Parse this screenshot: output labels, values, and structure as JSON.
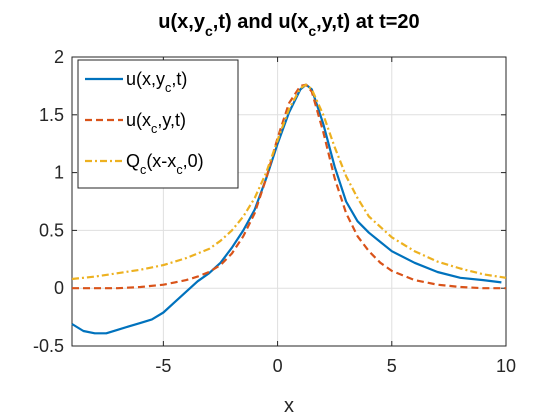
{
  "chart_data": {
    "type": "line",
    "title": "u(x,y_c,t) and u(x_c,y,t) at t=20",
    "title_parts": [
      {
        "t": "u(x,y",
        "sub": false
      },
      {
        "t": "c",
        "sub": true
      },
      {
        "t": ",t) and u(x",
        "sub": false
      },
      {
        "t": "c",
        "sub": true
      },
      {
        "t": ",y,t) at t=20",
        "sub": false
      }
    ],
    "xlabel": "x",
    "ylabel": "",
    "xlim": [
      -9,
      10
    ],
    "ylim": [
      -0.5,
      2
    ],
    "xticks": [
      -5,
      0,
      5,
      10
    ],
    "yticks": [
      -0.5,
      0,
      0.5,
      1,
      1.5,
      2
    ],
    "xtick_labels": [
      "-5",
      "0",
      "5",
      "10"
    ],
    "ytick_labels": [
      "-0.5",
      "0",
      "0.5",
      "1",
      "1.5",
      "2"
    ],
    "grid": true,
    "legend_position": "top-left",
    "series": [
      {
        "name": "u(x,y_c,t)",
        "name_parts": [
          {
            "t": "u(x,y",
            "sub": false
          },
          {
            "t": "c",
            "sub": true
          },
          {
            "t": ",t)",
            "sub": false
          }
        ],
        "color": "#0072BD",
        "style": "solid",
        "x": [
          -9,
          -8.5,
          -8,
          -7.5,
          -7,
          -6.5,
          -6,
          -5.5,
          -5,
          -4.5,
          -4,
          -3.5,
          -3,
          -2.5,
          -2,
          -1.5,
          -1,
          -0.5,
          0,
          0.5,
          1,
          1.25,
          1.5,
          2,
          2.5,
          3,
          3.5,
          4,
          4.5,
          5,
          6,
          7,
          8,
          9,
          9.8
        ],
        "y": [
          -0.31,
          -0.37,
          -0.39,
          -0.39,
          -0.36,
          -0.33,
          -0.3,
          -0.27,
          -0.21,
          -0.12,
          -0.03,
          0.06,
          0.13,
          0.22,
          0.35,
          0.5,
          0.68,
          0.95,
          1.25,
          1.52,
          1.72,
          1.76,
          1.72,
          1.42,
          1.05,
          0.75,
          0.58,
          0.48,
          0.4,
          0.32,
          0.22,
          0.14,
          0.09,
          0.07,
          0.05
        ]
      },
      {
        "name": "u(x_c,y,t)",
        "name_parts": [
          {
            "t": "u(x",
            "sub": false
          },
          {
            "t": "c",
            "sub": true
          },
          {
            "t": ",y,t)",
            "sub": false
          }
        ],
        "color": "#D95319",
        "style": "dashed",
        "x": [
          -9,
          -8,
          -7,
          -6,
          -5,
          -4.5,
          -4,
          -3.5,
          -3,
          -2.5,
          -2,
          -1.5,
          -1,
          -0.5,
          0,
          0.5,
          1,
          1.25,
          1.5,
          2,
          2.5,
          3,
          3.5,
          4,
          4.5,
          5,
          6,
          7,
          8,
          9,
          10
        ],
        "y": [
          0,
          0,
          0,
          0.01,
          0.03,
          0.05,
          0.07,
          0.1,
          0.14,
          0.2,
          0.3,
          0.45,
          0.65,
          0.95,
          1.3,
          1.6,
          1.75,
          1.76,
          1.7,
          1.35,
          0.95,
          0.65,
          0.45,
          0.32,
          0.22,
          0.15,
          0.07,
          0.03,
          0.01,
          0,
          0
        ]
      },
      {
        "name": "Q_c(x-x_c,0)",
        "name_parts": [
          {
            "t": "Q",
            "sub": false
          },
          {
            "t": "c",
            "sub": true
          },
          {
            "t": "(x-x",
            "sub": false
          },
          {
            "t": "c",
            "sub": true
          },
          {
            "t": ",0)",
            "sub": false
          }
        ],
        "color": "#EDB120",
        "style": "dashdot",
        "x": [
          -9,
          -8,
          -7,
          -6,
          -5,
          -4,
          -3,
          -2.5,
          -2,
          -1.5,
          -1,
          -0.5,
          0,
          0.5,
          1,
          1.25,
          1.5,
          2,
          2.5,
          3,
          3.5,
          4,
          5,
          6,
          7,
          8,
          9,
          10
        ],
        "y": [
          0.08,
          0.1,
          0.13,
          0.16,
          0.2,
          0.26,
          0.34,
          0.41,
          0.5,
          0.62,
          0.78,
          1.0,
          1.28,
          1.55,
          1.73,
          1.76,
          1.72,
          1.5,
          1.22,
          0.97,
          0.78,
          0.62,
          0.44,
          0.32,
          0.23,
          0.17,
          0.12,
          0.09
        ]
      }
    ]
  }
}
